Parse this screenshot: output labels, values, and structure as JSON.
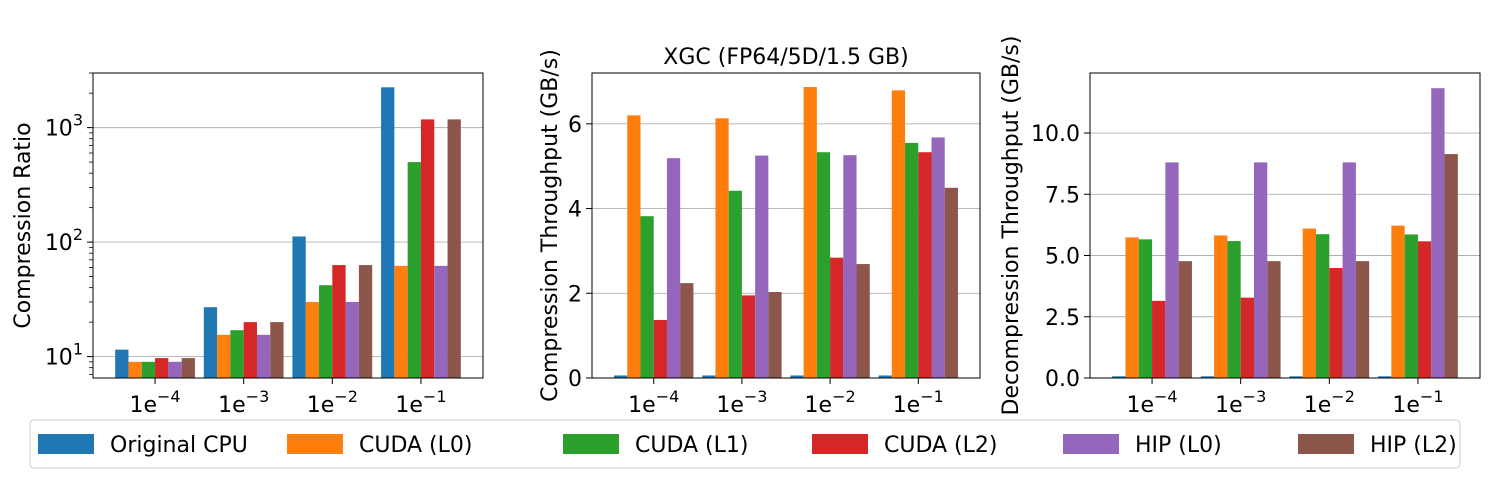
{
  "colors": {
    "Original CPU": "#1f77b4",
    "CUDA (L0)": "#ff7f0e",
    "CUDA (L1)": "#2ca02c",
    "CUDA (L2)": "#d62728",
    "HIP (L0)": "#9467bd",
    "HIP (L2)": "#8c564b"
  },
  "legend": {
    "placement": "bottom",
    "entries": [
      "Original CPU",
      "CUDA (L0)",
      "CUDA (L1)",
      "CUDA (L2)",
      "HIP (L0)",
      "HIP (L2)"
    ]
  },
  "chart_data": [
    {
      "type": "bar",
      "title": "",
      "xlabel": "",
      "ylabel": "Compression Ratio",
      "yscale": "log",
      "ylim": [
        6.5,
        3000
      ],
      "yticks": [
        10,
        100,
        1000
      ],
      "ytick_labels": [
        {
          "base": "10",
          "exp": "1"
        },
        {
          "base": "10",
          "exp": "2"
        },
        {
          "base": "10",
          "exp": "3"
        }
      ],
      "grid": "y",
      "categories": [
        "1e-4",
        "1e-3",
        "1e-2",
        "1e-1"
      ],
      "category_labels": [
        {
          "base": "1e",
          "exp": "−4"
        },
        {
          "base": "1e",
          "exp": "−3"
        },
        {
          "base": "1e",
          "exp": "−2"
        },
        {
          "base": "1e",
          "exp": "−1"
        }
      ],
      "series": [
        {
          "name": "Original CPU",
          "values": [
            11.5,
            27,
            112,
            2250
          ]
        },
        {
          "name": "CUDA (L0)",
          "values": [
            9,
            15.5,
            30,
            62
          ]
        },
        {
          "name": "CUDA (L1)",
          "values": [
            9,
            17,
            42,
            500
          ]
        },
        {
          "name": "CUDA (L2)",
          "values": [
            9.7,
            20,
            63,
            1180
          ]
        },
        {
          "name": "HIP (L0)",
          "values": [
            9,
            15.5,
            30,
            62
          ]
        },
        {
          "name": "HIP (L2)",
          "values": [
            9.7,
            20,
            63,
            1180
          ]
        }
      ]
    },
    {
      "type": "bar",
      "title": "XGC (FP64/5D/1.5 GB)",
      "xlabel": "",
      "ylabel": "Compression Throughput (GB/s)",
      "yscale": "linear",
      "ylim": [
        0,
        7.2
      ],
      "yticks": [
        0,
        2,
        4,
        6
      ],
      "ytick_labels": [
        "0",
        "2",
        "4",
        "6"
      ],
      "grid": "y",
      "categories": [
        "1e-4",
        "1e-3",
        "1e-2",
        "1e-1"
      ],
      "category_labels": [
        {
          "base": "1e",
          "exp": "−4"
        },
        {
          "base": "1e",
          "exp": "−3"
        },
        {
          "base": "1e",
          "exp": "−2"
        },
        {
          "base": "1e",
          "exp": "−1"
        }
      ],
      "series": [
        {
          "name": "Original CPU",
          "values": [
            0.06,
            0.06,
            0.06,
            0.06
          ]
        },
        {
          "name": "CUDA (L0)",
          "values": [
            6.2,
            6.13,
            6.87,
            6.79
          ]
        },
        {
          "name": "CUDA (L1)",
          "values": [
            3.82,
            4.42,
            5.33,
            5.55
          ]
        },
        {
          "name": "CUDA (L2)",
          "values": [
            1.37,
            1.95,
            2.84,
            5.33
          ]
        },
        {
          "name": "HIP (L0)",
          "values": [
            5.19,
            5.25,
            5.26,
            5.68
          ]
        },
        {
          "name": "HIP (L2)",
          "values": [
            2.24,
            2.03,
            2.69,
            4.49
          ]
        }
      ]
    },
    {
      "type": "bar",
      "title": "",
      "xlabel": "",
      "ylabel": "Decompression Throughput (GB/s)",
      "yscale": "linear",
      "ylim": [
        0,
        12.45
      ],
      "yticks": [
        0,
        2.5,
        5,
        7.5,
        10
      ],
      "ytick_labels": [
        "0.0",
        "2.5",
        "5.0",
        "7.5",
        "10.0"
      ],
      "grid": "y",
      "categories": [
        "1e-4",
        "1e-3",
        "1e-2",
        "1e-1"
      ],
      "category_labels": [
        {
          "base": "1e",
          "exp": "−4"
        },
        {
          "base": "1e",
          "exp": "−3"
        },
        {
          "base": "1e",
          "exp": "−2"
        },
        {
          "base": "1e",
          "exp": "−1"
        }
      ],
      "series": [
        {
          "name": "Original CPU",
          "values": [
            0.07,
            0.07,
            0.07,
            0.07
          ]
        },
        {
          "name": "CUDA (L0)",
          "values": [
            5.74,
            5.82,
            6.1,
            6.22
          ]
        },
        {
          "name": "CUDA (L1)",
          "values": [
            5.66,
            5.59,
            5.87,
            5.86
          ]
        },
        {
          "name": "CUDA (L2)",
          "values": [
            3.15,
            3.28,
            4.49,
            5.58
          ]
        },
        {
          "name": "HIP (L0)",
          "values": [
            8.8,
            8.8,
            8.8,
            11.83
          ]
        },
        {
          "name": "HIP (L2)",
          "values": [
            4.77,
            4.77,
            4.77,
            9.14
          ]
        }
      ]
    }
  ]
}
